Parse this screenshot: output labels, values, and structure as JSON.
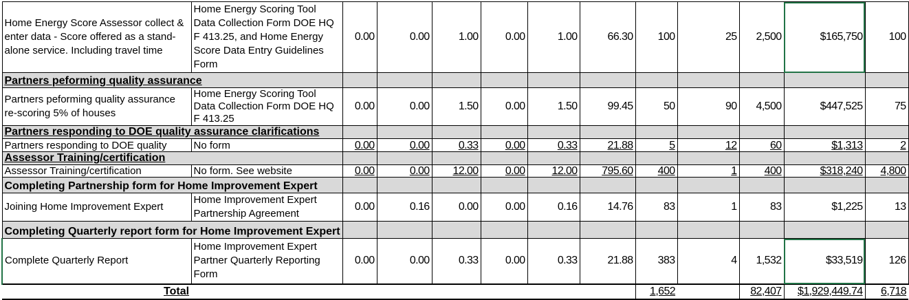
{
  "selection_color": "#217346",
  "section_bg": "#d9d9d9",
  "rows": [
    {
      "type": "data",
      "desc": "Home Energy Score Assessor collect & enter data - Score offered as a stand-alone service. Including travel time",
      "form": "Home Energy Scoring Tool Data Collection Form  DOE HQ F 413.25, and Home Energy Score Data Entry Guidelines Form",
      "values": [
        "0.00",
        "0.00",
        "1.00",
        "0.00",
        "1.00",
        "66.30",
        "100",
        "25",
        "2,500",
        "$165,750",
        "100"
      ]
    },
    {
      "type": "section",
      "title": "Partners peforming quality assurance"
    },
    {
      "type": "data",
      "desc": "Partners peforming quality assurance re-scoring 5% of houses",
      "form": "Home Energy Scoring Tool Data Collection Form DOE HQ F 413.25",
      "values": [
        "0.00",
        "0.00",
        "1.50",
        "0.00",
        "1.50",
        "99.45",
        "50",
        "90",
        "4,500",
        "$447,525",
        "75"
      ]
    },
    {
      "type": "section",
      "title": "Partners responding to DOE quality assurance clarifications"
    },
    {
      "type": "data",
      "desc": "Partners responding to DOE quality",
      "form": "No form",
      "values": [
        "0.00",
        "0.00",
        "0.33",
        "0.00",
        "0.33",
        "21.88",
        "5",
        "12",
        "60",
        "$1,313",
        "2"
      ]
    },
    {
      "type": "section",
      "title": "Assessor Training/certification"
    },
    {
      "type": "data",
      "desc": "Assessor Training/certification",
      "form": "No form. See website",
      "values": [
        "0.00",
        "0.00",
        "12.00",
        "0.00",
        "12.00",
        "795.60",
        "400",
        "1",
        "400",
        "$318,240",
        "4,800"
      ]
    },
    {
      "type": "section",
      "title": "Completing Partnership form for Home Improvement Expert"
    },
    {
      "type": "data",
      "desc": "Joining Home Improvement Expert",
      "form": "Home Improvement Expert Partnership Agreement",
      "values": [
        "0.00",
        "0.16",
        "0.00",
        "0.00",
        "0.16",
        "14.76",
        "83",
        "1",
        "83",
        "$1,225",
        "13"
      ]
    },
    {
      "type": "section",
      "title": "Completing Quarterly report form for Home Improvement Expert"
    },
    {
      "type": "data",
      "desc": "Complete Quarterly Report",
      "form": "Home Improvement Expert Partner Quarterly Reporting Form",
      "values": [
        "0.00",
        "0.00",
        "0.33",
        "0.00",
        "0.33",
        "21.88",
        "383",
        "4",
        "1,532",
        "$33,519",
        "126"
      ]
    }
  ],
  "total": {
    "label": "Total",
    "responses": "1,652",
    "hours": "82,407",
    "cost": "$1,929,449.74",
    "last": "6,718"
  }
}
